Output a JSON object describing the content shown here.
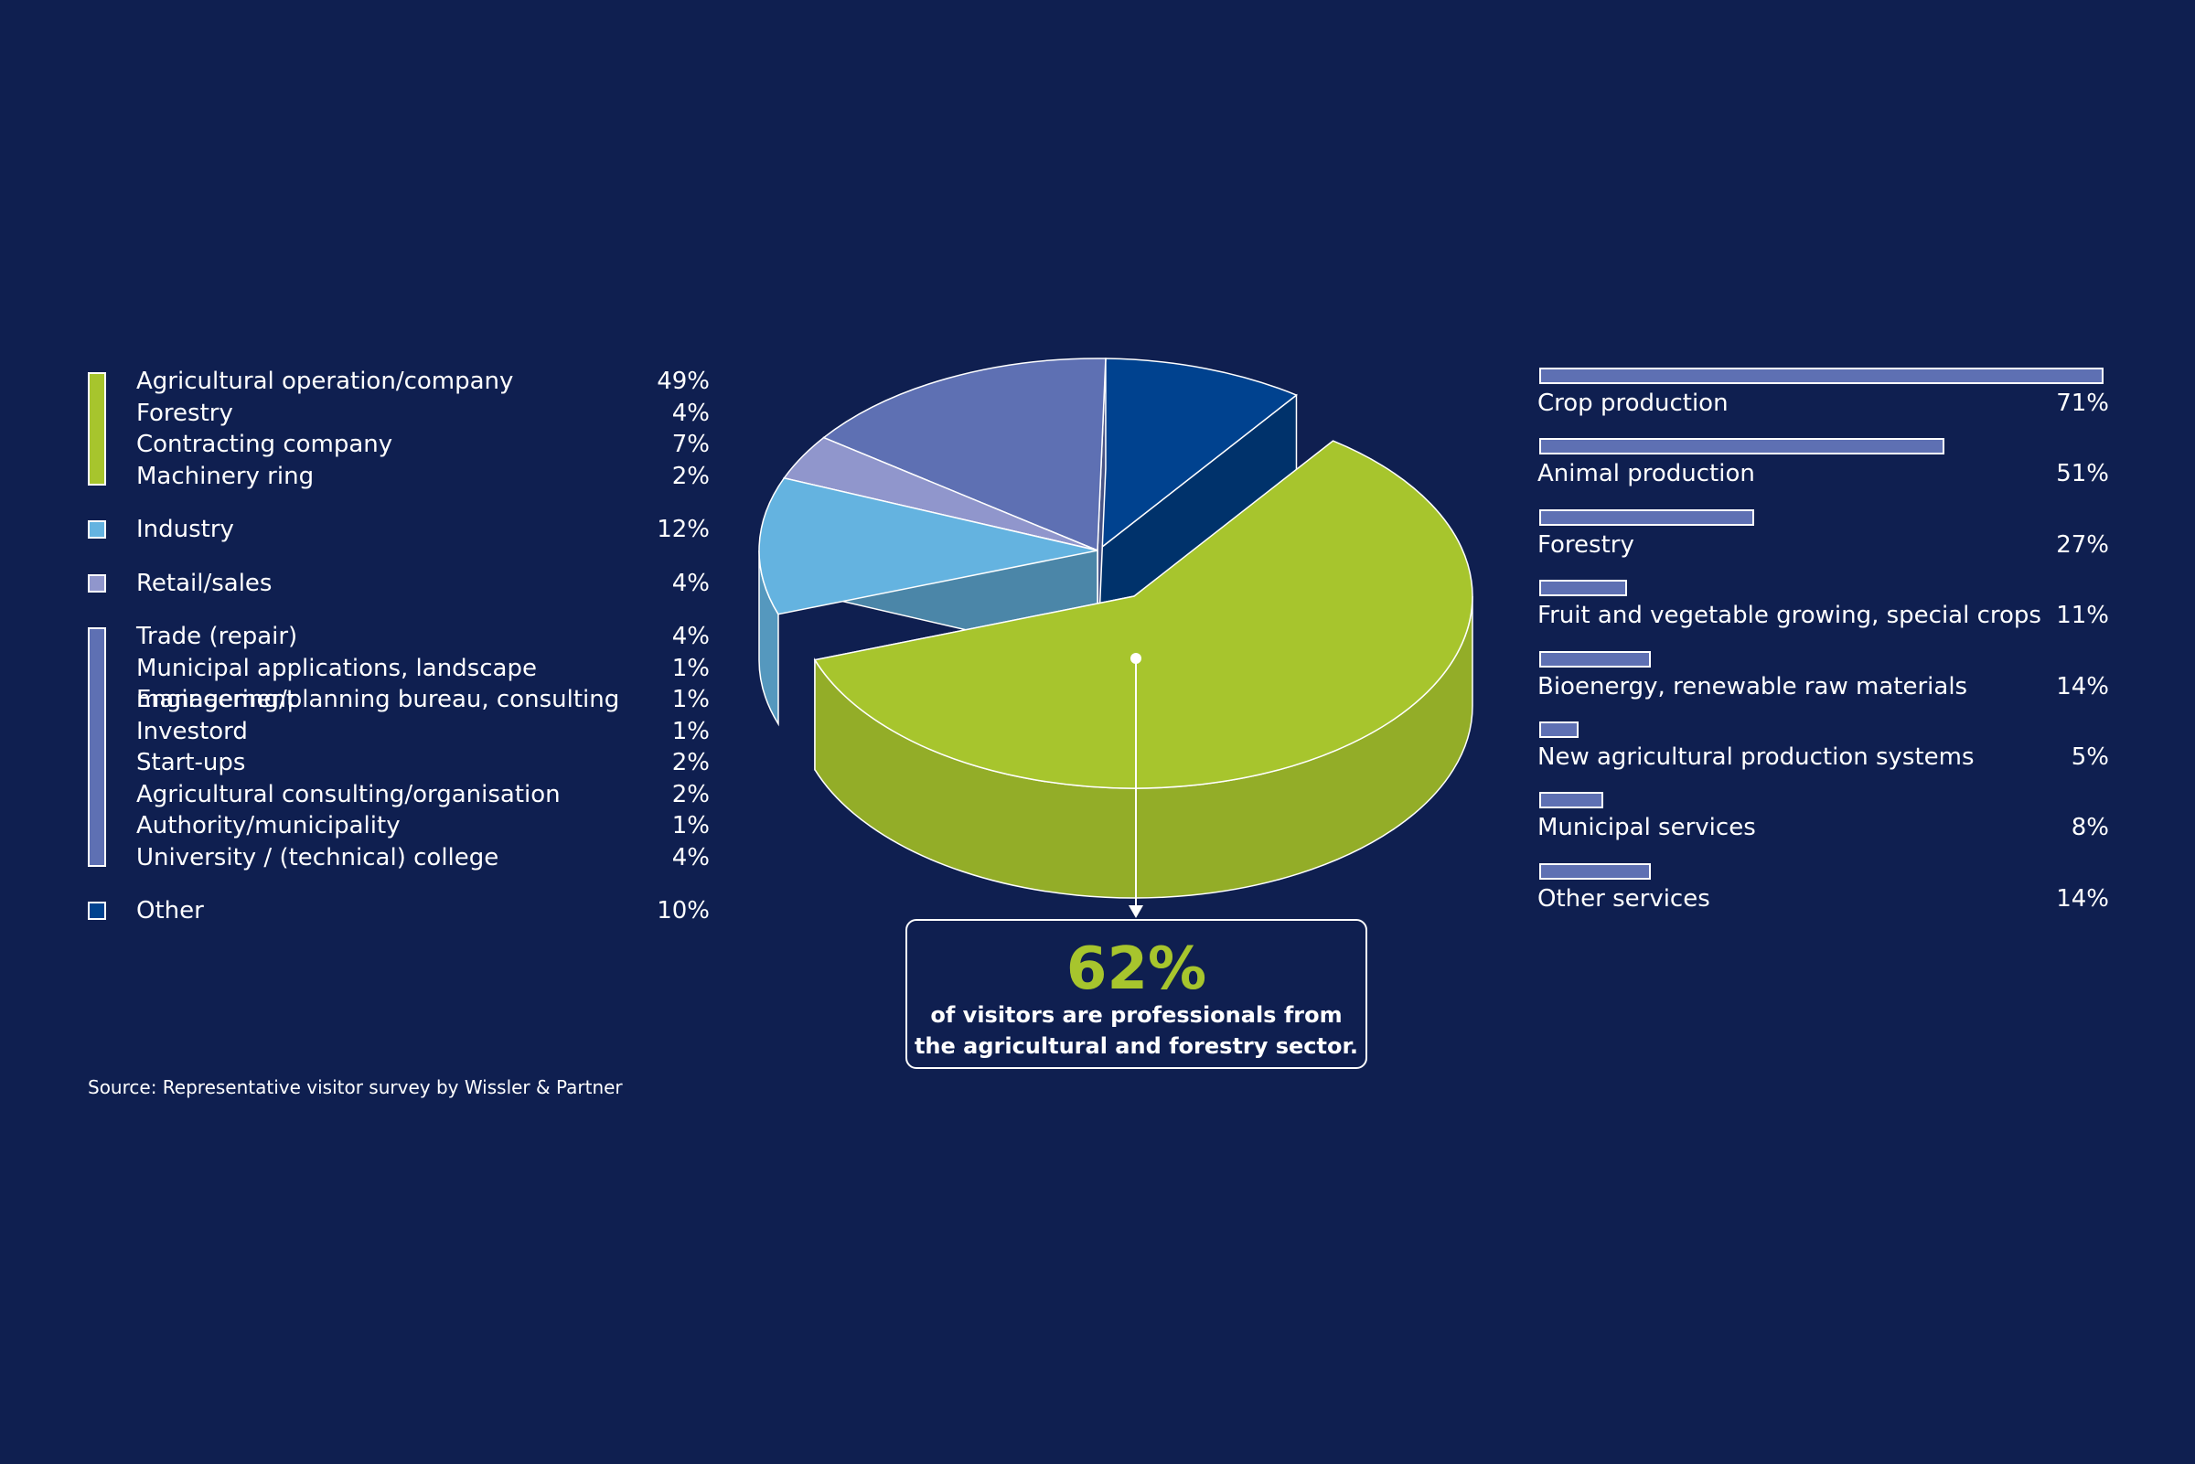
{
  "chart_data": [
    {
      "type": "pie",
      "slices": [
        {
          "label": "Agricultural and forestry sector",
          "value": 62,
          "color": "#a7c52d"
        },
        {
          "label": "Industry",
          "value": 12,
          "color": "#64b3e0"
        },
        {
          "label": "Retail/sales",
          "value": 4,
          "color": "#9096cc"
        },
        {
          "label": "Trade (repair) and services",
          "value": 16,
          "color": "#5e70b3"
        },
        {
          "label": "Other",
          "value": 10,
          "color": "#00428f"
        }
      ],
      "legend": [
        {
          "color": "#a7c52d",
          "items": [
            {
              "label": "Agricultural operation/company",
              "value": "49%"
            },
            {
              "label": "Forestry",
              "value": "4%"
            },
            {
              "label": "Contracting company",
              "value": "7%"
            },
            {
              "label": "Machinery ring",
              "value": "2%"
            }
          ]
        },
        {
          "color": "#64b3e0",
          "items": [
            {
              "label": "Industry",
              "value": "12%"
            }
          ]
        },
        {
          "color": "#9096cc",
          "items": [
            {
              "label": "Retail/sales",
              "value": "4%"
            }
          ]
        },
        {
          "color": "#5e70b3",
          "items": [
            {
              "label": "Trade (repair)",
              "value": "4%"
            },
            {
              "label": "Municipal applications, landscape management",
              "value": "1%"
            },
            {
              "label": "Engineering/planning bureau, consulting",
              "value": "1%"
            },
            {
              "label": "Investord",
              "value": "1%"
            },
            {
              "label": "Start-ups",
              "value": "2%"
            },
            {
              "label": "Agricultural consulting/organisation",
              "value": "2%"
            },
            {
              "label": "Authority/municipality",
              "value": "1%"
            },
            {
              "label": "University / (technical) college",
              "value": "4%"
            }
          ]
        },
        {
          "color": "#00428f",
          "items": [
            {
              "label": "Other",
              "value": "10%"
            }
          ]
        }
      ]
    },
    {
      "type": "bar",
      "orientation": "horizontal",
      "xlim": [
        0,
        71
      ],
      "bar_color": "#5e70b3",
      "categories": [
        "Crop production",
        "Animal production",
        "Forestry",
        "Fruit and vegetable growing, special crops",
        "Bioenergy, renewable raw materials",
        "New agricultural production systems",
        "Municipal services",
        "Other services"
      ],
      "values": [
        71,
        51,
        27,
        11,
        14,
        5,
        8,
        14
      ],
      "value_labels": [
        "71%",
        "51%",
        "27%",
        "11%",
        "14%",
        "5%",
        "8%",
        "14%"
      ]
    }
  ],
  "callout": {
    "value": "62%",
    "line1": "of visitors are professionals from",
    "line2": "the agricultural and forestry sector."
  },
  "source": "Source: Representative visitor survey by Wissler & Partner"
}
